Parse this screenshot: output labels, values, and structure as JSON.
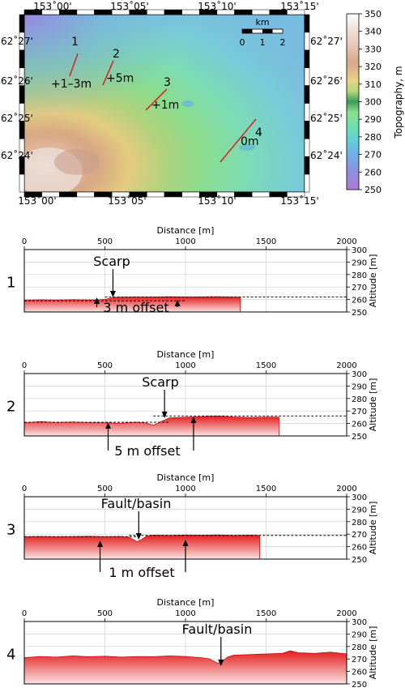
{
  "map": {
    "lon_ticks": [
      "153˚00'",
      "153˚05'",
      "153˚10'",
      "153˚15'"
    ],
    "lat_ticks": [
      "62˚27'",
      "62˚26'",
      "62˚25'",
      "62˚24'"
    ],
    "scale_bar": {
      "unit": "km",
      "ticks": [
        "0",
        "1",
        "2"
      ]
    },
    "profiles": [
      {
        "id": "1",
        "offset_label": "+1–3m"
      },
      {
        "id": "2",
        "offset_label": "+5m"
      },
      {
        "id": "3",
        "offset_label": "+1m"
      },
      {
        "id": "4",
        "offset_label": "0m"
      }
    ],
    "colors": {
      "profile_line": "#d42a2a"
    }
  },
  "colorbar": {
    "label": "Topography, m",
    "range": [
      250,
      350
    ],
    "ticks": [
      "250",
      "260",
      "270",
      "280",
      "290",
      "300",
      "310",
      "320",
      "330",
      "340",
      "350"
    ]
  },
  "chart_data": [
    {
      "type": "area",
      "id": "1",
      "xlabel": "Distance [m]",
      "ylabel": "Altitude [m]",
      "xlim": [
        0,
        2000
      ],
      "ylim": [
        250,
        300
      ],
      "x_ticks": [
        "0",
        "500",
        "1000",
        "1500",
        "2000"
      ],
      "y_ticks": [
        "250",
        "260",
        "270",
        "280",
        "290",
        "300"
      ],
      "profile": {
        "x": [
          0,
          100,
          200,
          300,
          400,
          450,
          500,
          550,
          600,
          700,
          800,
          900,
          1000,
          1100,
          1200,
          1300,
          1340
        ],
        "y": [
          259.5,
          259.8,
          259.6,
          259.9,
          259.7,
          259.8,
          260.1,
          261.5,
          261.8,
          262.0,
          261.9,
          262.2,
          262.0,
          262.1,
          262.2,
          261.9,
          262.0
        ]
      },
      "ref_lines": [
        {
          "x": [
            0,
            1000
          ],
          "y": [
            259,
            259
          ]
        },
        {
          "x": [
            500,
            2000
          ],
          "y": [
            262,
            262
          ]
        }
      ],
      "annotations": [
        {
          "text": "Scarp",
          "target": [
            550,
            261
          ]
        },
        {
          "text": "3 m offset",
          "arrows": [
            450,
            950
          ]
        }
      ]
    },
    {
      "type": "area",
      "id": "2",
      "xlabel": "Distance [m]",
      "ylabel": "Altitude [m]",
      "xlim": [
        0,
        2000
      ],
      "ylim": [
        250,
        300
      ],
      "x_ticks": [
        "0",
        "500",
        "1000",
        "1500",
        "2000"
      ],
      "y_ticks": [
        "250",
        "260",
        "270",
        "280",
        "290",
        "300"
      ],
      "profile": {
        "x": [
          0,
          100,
          200,
          300,
          400,
          500,
          600,
          700,
          750,
          800,
          850,
          900,
          1000,
          1100,
          1200,
          1300,
          1400,
          1500,
          1580
        ],
        "y": [
          260.5,
          261.5,
          260.8,
          261.2,
          260.7,
          260.5,
          260.2,
          261.0,
          260.5,
          258.5,
          261.5,
          264.5,
          265.0,
          265.5,
          266.0,
          265.2,
          264.8,
          265.1,
          265.0
        ]
      },
      "ref_lines": [
        {
          "x": [
            0,
            900
          ],
          "y": [
            261,
            261
          ]
        },
        {
          "x": [
            800,
            2000
          ],
          "y": [
            266,
            266
          ]
        }
      ],
      "annotations": [
        {
          "text": "Scarp",
          "target": [
            870,
            263
          ]
        },
        {
          "text": "5 m offset",
          "arrows": [
            520,
            1050
          ]
        }
      ]
    },
    {
      "type": "area",
      "id": "3",
      "xlabel": "Distance [m]",
      "ylabel": "Altitude [m]",
      "xlim": [
        0,
        2000
      ],
      "ylim": [
        250,
        300
      ],
      "x_ticks": [
        "0",
        "500",
        "1000",
        "1500",
        "2000"
      ],
      "y_ticks": [
        "250",
        "260",
        "270",
        "280",
        "290",
        "300"
      ],
      "profile": {
        "x": [
          0,
          100,
          200,
          300,
          400,
          500,
          600,
          650,
          700,
          730,
          760,
          800,
          900,
          1000,
          1100,
          1200,
          1300,
          1400,
          1460
        ],
        "y": [
          268.0,
          268.2,
          268.0,
          268.1,
          268.3,
          268.0,
          268.2,
          267.5,
          264.0,
          266.0,
          268.5,
          269.2,
          269.0,
          269.3,
          269.1,
          269.4,
          269.0,
          269.2,
          269.0
        ]
      },
      "ref_lines": [
        {
          "x": [
            0,
            700
          ],
          "y": [
            268,
            268
          ]
        },
        {
          "x": [
            650,
            2000
          ],
          "y": [
            269,
            269
          ]
        }
      ],
      "annotations": [
        {
          "text": "Fault/basin",
          "target": [
            710,
            266
          ]
        },
        {
          "text": "1 m offset",
          "arrows": [
            470,
            1000
          ]
        }
      ]
    },
    {
      "type": "area",
      "id": "4",
      "xlabel": "Distance [m]",
      "ylabel": "Altitude [m]",
      "xlim": [
        0,
        2000
      ],
      "ylim": [
        250,
        300
      ],
      "x_ticks": [
        "0",
        "500",
        "1000",
        "1500",
        "2000"
      ],
      "y_ticks": [
        "250",
        "260",
        "270",
        "280",
        "290",
        "300"
      ],
      "profile": {
        "x": [
          0,
          100,
          200,
          300,
          400,
          500,
          600,
          700,
          800,
          900,
          1000,
          1100,
          1150,
          1200,
          1230,
          1260,
          1300,
          1400,
          1500,
          1600,
          1650,
          1700,
          1800,
          1900,
          2000
        ],
        "y": [
          271.0,
          272.0,
          271.5,
          272.5,
          271.8,
          272.2,
          271.5,
          272.0,
          271.8,
          272.5,
          272.0,
          271.0,
          270.0,
          266.5,
          268.0,
          271.5,
          273.0,
          273.5,
          274.0,
          274.5,
          276.5,
          275.0,
          274.5,
          275.5,
          274.0
        ]
      },
      "ref_lines": [],
      "annotations": [
        {
          "text": "Fault/basin",
          "target": [
            1220,
            267
          ]
        }
      ]
    }
  ]
}
